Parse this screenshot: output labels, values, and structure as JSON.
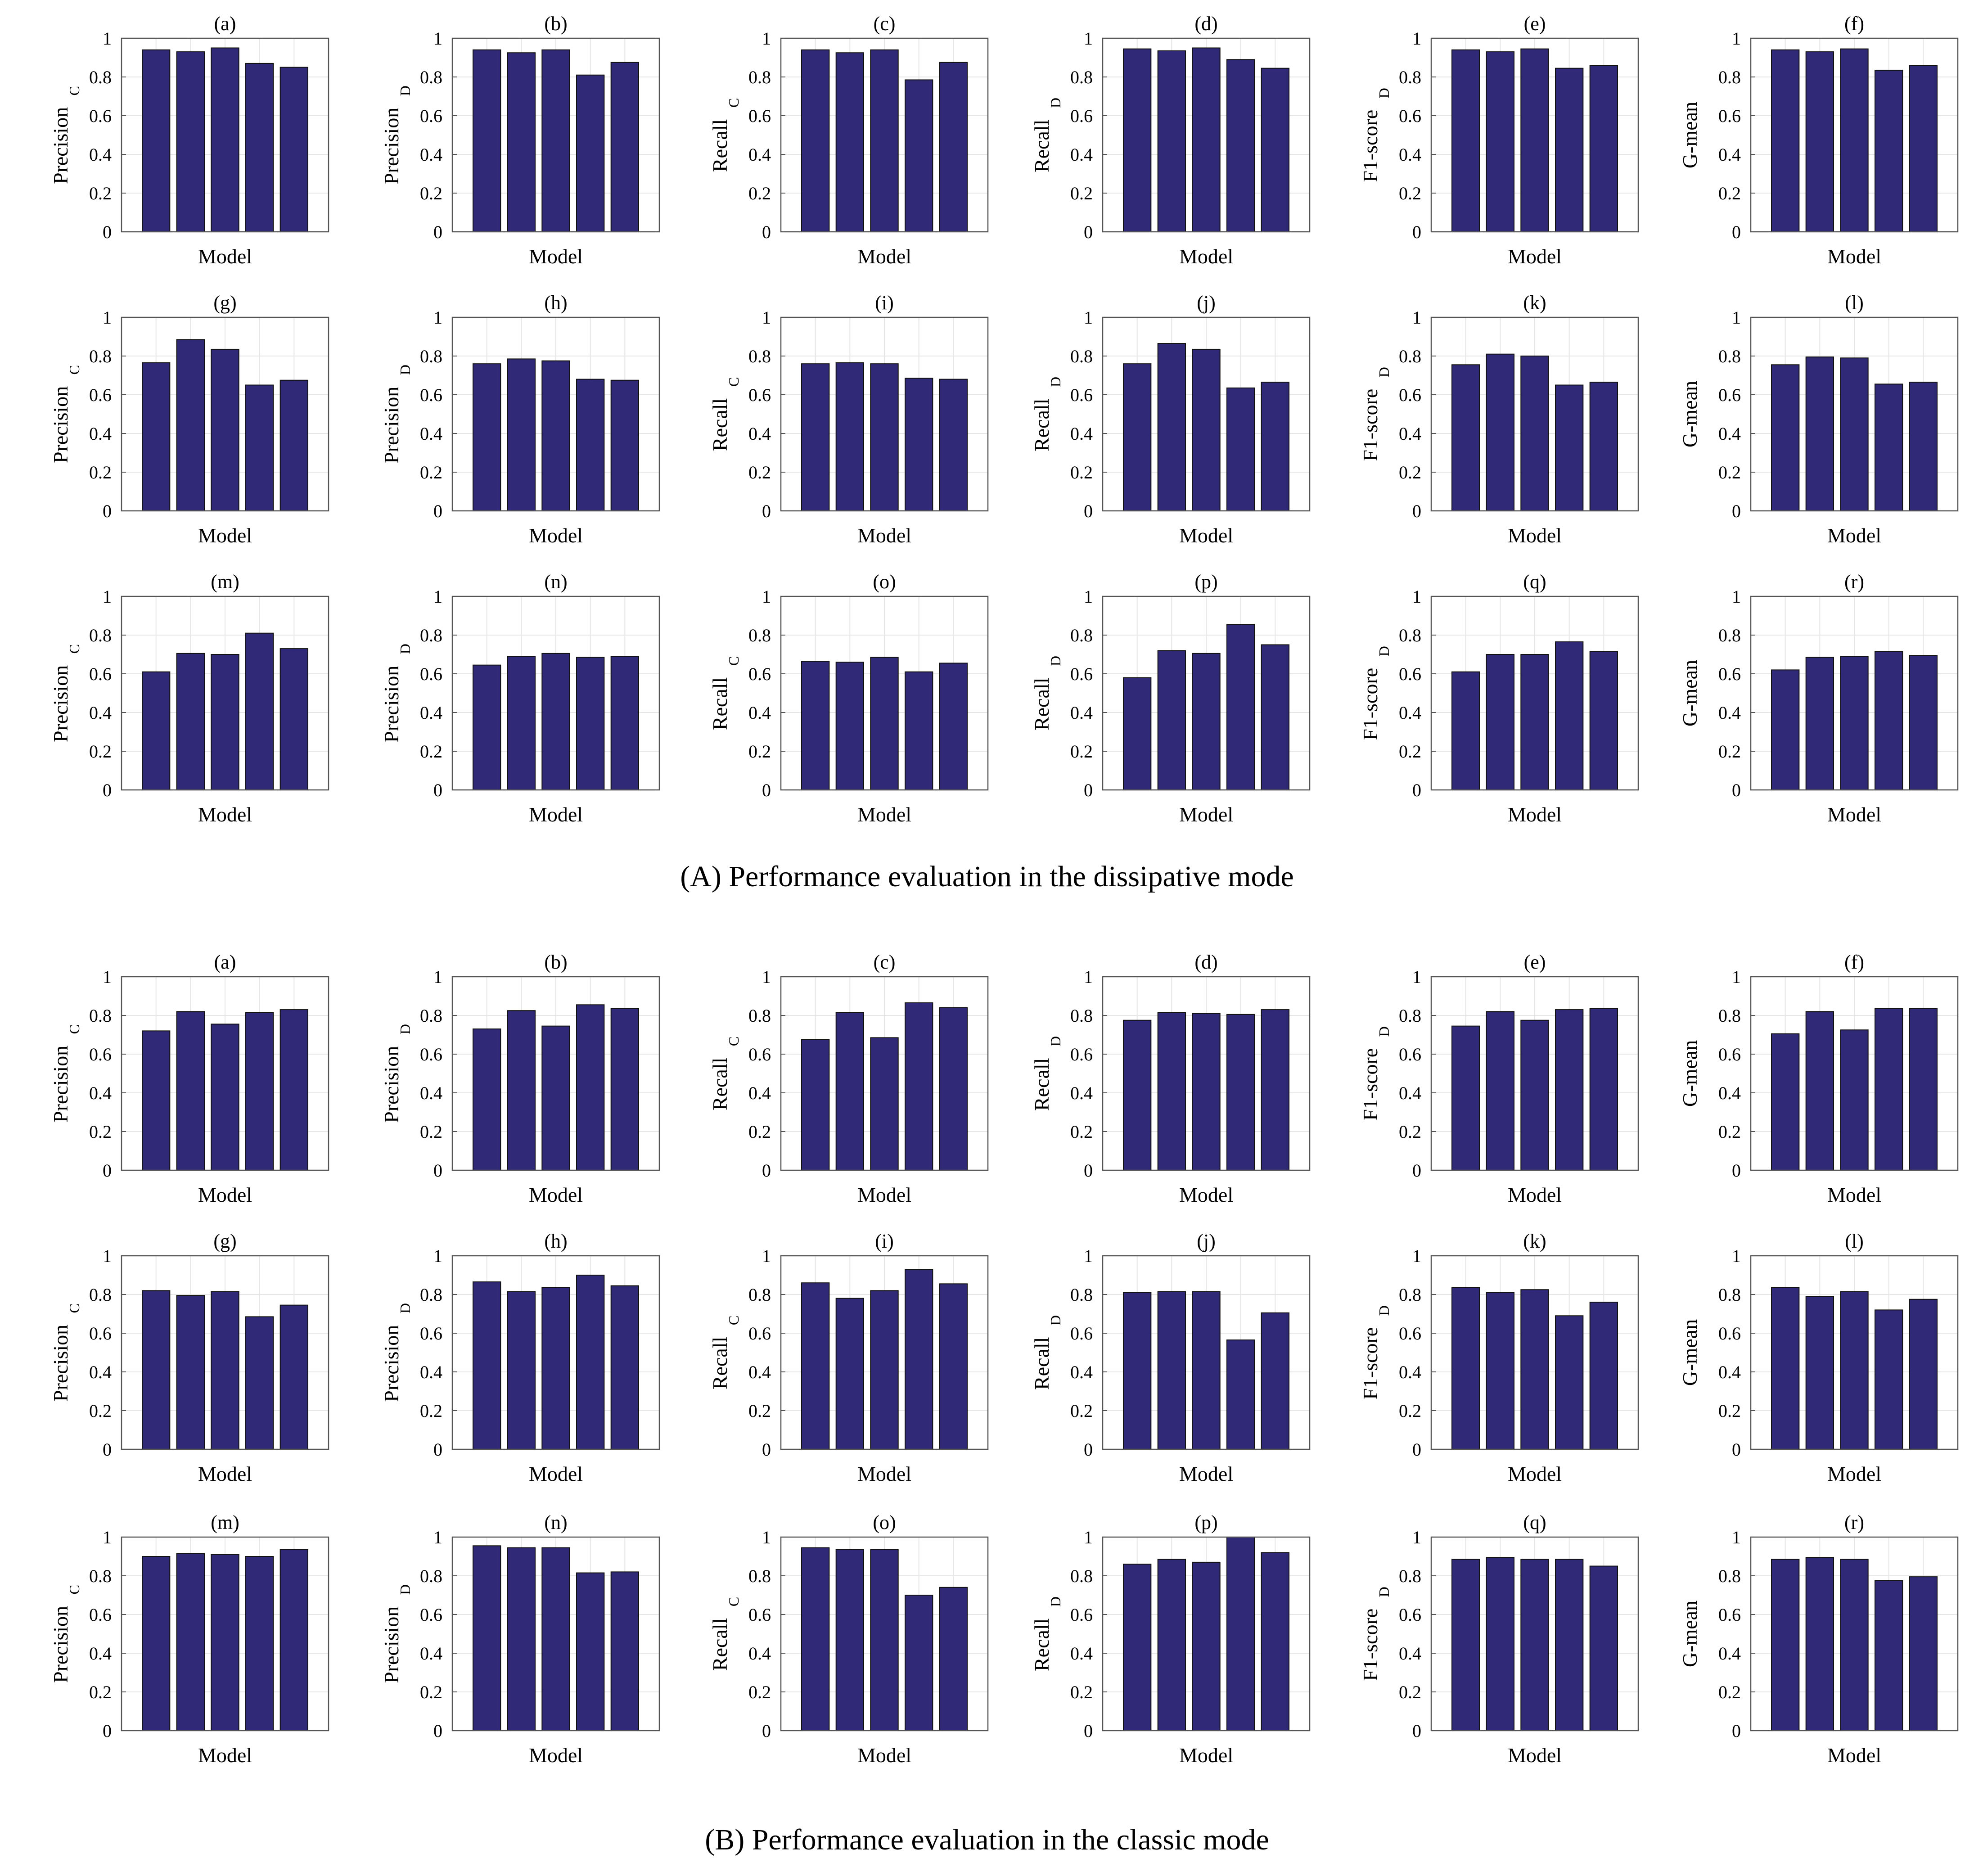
{
  "captions": {
    "section_a": "(A) Performance evaluation in  the dissipative mode",
    "section_b": "(B) Performance evaluation in the classic mode"
  },
  "colors": {
    "bar": "#302978",
    "bar_edge": "#111111",
    "grid": "#e6e6e6",
    "axis": "#555555"
  },
  "chart_data": [
    {
      "section": "A",
      "type": "bar",
      "panels": [
        {
          "title": "(a)",
          "ylabel": "Precision",
          "ysub": "C",
          "xlabel": "Model",
          "ylim": [
            0,
            1
          ],
          "yticks": [
            "0",
            "0.2",
            "0.4",
            "0.6",
            "0.8",
            "1"
          ],
          "values": [
            0.94,
            0.93,
            0.95,
            0.87,
            0.85
          ]
        },
        {
          "title": "(b)",
          "ylabel": "Precision",
          "ysub": "D",
          "xlabel": "Model",
          "ylim": [
            0,
            1
          ],
          "yticks": [
            "0",
            "0.2",
            "0.4",
            "0.6",
            "0.8",
            "1"
          ],
          "values": [
            0.94,
            0.925,
            0.94,
            0.81,
            0.875
          ]
        },
        {
          "title": "(c)",
          "ylabel": "Recall",
          "ysub": "C",
          "xlabel": "Model",
          "ylim": [
            0,
            1
          ],
          "yticks": [
            "0",
            "0.2",
            "0.4",
            "0.6",
            "0.8",
            "1"
          ],
          "values": [
            0.94,
            0.925,
            0.94,
            0.785,
            0.875
          ]
        },
        {
          "title": "(d)",
          "ylabel": "Recall",
          "ysub": "D",
          "xlabel": "Model",
          "ylim": [
            0,
            1
          ],
          "yticks": [
            "0",
            "0.2",
            "0.4",
            "0.6",
            "0.8",
            "1"
          ],
          "values": [
            0.945,
            0.935,
            0.95,
            0.89,
            0.845
          ]
        },
        {
          "title": "(e)",
          "ylabel": "F1-score",
          "ysub": "D",
          "xlabel": "Model",
          "ylim": [
            0,
            1
          ],
          "yticks": [
            "0",
            "0.2",
            "0.4",
            "0.6",
            "0.8",
            "1"
          ],
          "values": [
            0.94,
            0.93,
            0.945,
            0.845,
            0.86
          ]
        },
        {
          "title": "(f)",
          "ylabel": "G-mean",
          "ysub": "",
          "xlabel": "Model",
          "ylim": [
            0,
            1
          ],
          "yticks": [
            "0",
            "0.2",
            "0.4",
            "0.6",
            "0.8",
            "1"
          ],
          "values": [
            0.94,
            0.93,
            0.945,
            0.835,
            0.86
          ]
        },
        {
          "title": "(g)",
          "ylabel": "Precision",
          "ysub": "C",
          "xlabel": "Model",
          "ylim": [
            0,
            1
          ],
          "yticks": [
            "0",
            "0.2",
            "0.4",
            "0.6",
            "0.8",
            "1"
          ],
          "values": [
            0.765,
            0.885,
            0.835,
            0.65,
            0.675
          ]
        },
        {
          "title": "(h)",
          "ylabel": "Precision",
          "ysub": "D",
          "xlabel": "Model",
          "ylim": [
            0,
            1
          ],
          "yticks": [
            "0",
            "0.2",
            "0.4",
            "0.6",
            "0.8",
            "1"
          ],
          "values": [
            0.76,
            0.785,
            0.775,
            0.68,
            0.675
          ]
        },
        {
          "title": "(i)",
          "ylabel": "Recall",
          "ysub": "C",
          "xlabel": "Model",
          "ylim": [
            0,
            1
          ],
          "yticks": [
            "0",
            "0.2",
            "0.4",
            "0.6",
            "0.8",
            "1"
          ],
          "values": [
            0.76,
            0.765,
            0.76,
            0.685,
            0.68
          ]
        },
        {
          "title": "(j)",
          "ylabel": "Recall",
          "ysub": "D",
          "xlabel": "Model",
          "ylim": [
            0,
            1
          ],
          "yticks": [
            "0",
            "0.2",
            "0.4",
            "0.6",
            "0.8",
            "1"
          ],
          "values": [
            0.76,
            0.865,
            0.835,
            0.635,
            0.665
          ]
        },
        {
          "title": "(k)",
          "ylabel": "F1-score",
          "ysub": "D",
          "xlabel": "Model",
          "ylim": [
            0,
            1
          ],
          "yticks": [
            "0",
            "0.2",
            "0.4",
            "0.6",
            "0.8",
            "1"
          ],
          "values": [
            0.755,
            0.81,
            0.8,
            0.65,
            0.665
          ]
        },
        {
          "title": "(l)",
          "ylabel": "G-mean",
          "ysub": "",
          "xlabel": "Model",
          "ylim": [
            0,
            1
          ],
          "yticks": [
            "0",
            "0.2",
            "0.4",
            "0.6",
            "0.8",
            "1"
          ],
          "values": [
            0.755,
            0.795,
            0.79,
            0.655,
            0.665
          ]
        },
        {
          "title": "(m)",
          "ylabel": "Precision",
          "ysub": "C",
          "xlabel": "Model",
          "ylim": [
            0,
            1
          ],
          "yticks": [
            "0",
            "0.2",
            "0.4",
            "0.6",
            "0.8",
            "1"
          ],
          "values": [
            0.61,
            0.705,
            0.7,
            0.81,
            0.73
          ]
        },
        {
          "title": "(n)",
          "ylabel": "Precision",
          "ysub": "D",
          "xlabel": "Model",
          "ylim": [
            0,
            1
          ],
          "yticks": [
            "0",
            "0.2",
            "0.4",
            "0.6",
            "0.8",
            "1"
          ],
          "values": [
            0.645,
            0.69,
            0.705,
            0.685,
            0.69
          ]
        },
        {
          "title": "(o)",
          "ylabel": "Recall",
          "ysub": "C",
          "xlabel": "Model",
          "ylim": [
            0,
            1
          ],
          "yticks": [
            "0",
            "0.2",
            "0.4",
            "0.6",
            "0.8",
            "1"
          ],
          "values": [
            0.665,
            0.66,
            0.685,
            0.61,
            0.655
          ]
        },
        {
          "title": "(p)",
          "ylabel": "Recall",
          "ysub": "D",
          "xlabel": "Model",
          "ylim": [
            0,
            1
          ],
          "yticks": [
            "0",
            "0.2",
            "0.4",
            "0.6",
            "0.8",
            "1"
          ],
          "values": [
            0.58,
            0.72,
            0.705,
            0.855,
            0.75
          ]
        },
        {
          "title": "(q)",
          "ylabel": "F1-score",
          "ysub": "D",
          "xlabel": "Model",
          "ylim": [
            0,
            1
          ],
          "yticks": [
            "0",
            "0.2",
            "0.4",
            "0.6",
            "0.8",
            "1"
          ],
          "values": [
            0.61,
            0.7,
            0.7,
            0.765,
            0.715
          ]
        },
        {
          "title": "(r)",
          "ylabel": "G-mean",
          "ysub": "",
          "xlabel": "Model",
          "ylim": [
            0,
            1
          ],
          "yticks": [
            "0",
            "0.2",
            "0.4",
            "0.6",
            "0.8",
            "1"
          ],
          "values": [
            0.62,
            0.685,
            0.69,
            0.715,
            0.695
          ]
        }
      ]
    },
    {
      "section": "B",
      "type": "bar",
      "panels": [
        {
          "title": "(a)",
          "ylabel": "Precision",
          "ysub": "C",
          "xlabel": "Model",
          "ylim": [
            0,
            1
          ],
          "yticks": [
            "0",
            "0.2",
            "0.4",
            "0.6",
            "0.8",
            "1"
          ],
          "values": [
            0.72,
            0.82,
            0.755,
            0.815,
            0.83
          ]
        },
        {
          "title": "(b)",
          "ylabel": "Precision",
          "ysub": "D",
          "xlabel": "Model",
          "ylim": [
            0,
            1
          ],
          "yticks": [
            "0",
            "0.2",
            "0.4",
            "0.6",
            "0.8",
            "1"
          ],
          "values": [
            0.73,
            0.825,
            0.745,
            0.855,
            0.835
          ]
        },
        {
          "title": "(c)",
          "ylabel": "Recall",
          "ysub": "C",
          "xlabel": "Model",
          "ylim": [
            0,
            1
          ],
          "yticks": [
            "0",
            "0.2",
            "0.4",
            "0.6",
            "0.8",
            "1"
          ],
          "values": [
            0.675,
            0.815,
            0.685,
            0.865,
            0.84
          ]
        },
        {
          "title": "(d)",
          "ylabel": "Recall",
          "ysub": "D",
          "xlabel": "Model",
          "ylim": [
            0,
            1
          ],
          "yticks": [
            "0",
            "0.2",
            "0.4",
            "0.6",
            "0.8",
            "1"
          ],
          "values": [
            0.775,
            0.815,
            0.81,
            0.805,
            0.83
          ]
        },
        {
          "title": "(e)",
          "ylabel": "F1-score",
          "ysub": "D",
          "xlabel": "Model",
          "ylim": [
            0,
            1
          ],
          "yticks": [
            "0",
            "0.2",
            "0.4",
            "0.6",
            "0.8",
            "1"
          ],
          "values": [
            0.745,
            0.82,
            0.775,
            0.83,
            0.835
          ]
        },
        {
          "title": "(f)",
          "ylabel": "G-mean",
          "ysub": "",
          "xlabel": "Model",
          "ylim": [
            0,
            1
          ],
          "yticks": [
            "0",
            "0.2",
            "0.4",
            "0.6",
            "0.8",
            "1"
          ],
          "values": [
            0.705,
            0.82,
            0.725,
            0.835,
            0.835
          ]
        },
        {
          "title": "(g)",
          "ylabel": "Precision",
          "ysub": "C",
          "xlabel": "Model",
          "ylim": [
            0,
            1
          ],
          "yticks": [
            "0",
            "0.2",
            "0.4",
            "0.6",
            "0.8",
            "1"
          ],
          "values": [
            0.82,
            0.795,
            0.815,
            0.685,
            0.745
          ]
        },
        {
          "title": "(h)",
          "ylabel": "Precision",
          "ysub": "D",
          "xlabel": "Model",
          "ylim": [
            0,
            1
          ],
          "yticks": [
            "0",
            "0.2",
            "0.4",
            "0.6",
            "0.8",
            "1"
          ],
          "values": [
            0.865,
            0.815,
            0.835,
            0.9,
            0.845
          ]
        },
        {
          "title": "(i)",
          "ylabel": "Recall",
          "ysub": "C",
          "xlabel": "Model",
          "ylim": [
            0,
            1
          ],
          "yticks": [
            "0",
            "0.2",
            "0.4",
            "0.6",
            "0.8",
            "1"
          ],
          "values": [
            0.86,
            0.78,
            0.82,
            0.93,
            0.855
          ]
        },
        {
          "title": "(j)",
          "ylabel": "Recall",
          "ysub": "D",
          "xlabel": "Model",
          "ylim": [
            0,
            1
          ],
          "yticks": [
            "0",
            "0.2",
            "0.4",
            "0.6",
            "0.8",
            "1"
          ],
          "values": [
            0.81,
            0.815,
            0.815,
            0.565,
            0.705
          ]
        },
        {
          "title": "(k)",
          "ylabel": "F1-score",
          "ysub": "D",
          "xlabel": "Model",
          "ylim": [
            0,
            1
          ],
          "yticks": [
            "0",
            "0.2",
            "0.4",
            "0.6",
            "0.8",
            "1"
          ],
          "values": [
            0.835,
            0.81,
            0.825,
            0.69,
            0.76
          ]
        },
        {
          "title": "(l)",
          "ylabel": "G-mean",
          "ysub": "",
          "xlabel": "Model",
          "ylim": [
            0,
            1
          ],
          "yticks": [
            "0",
            "0.2",
            "0.4",
            "0.6",
            "0.8",
            "1"
          ],
          "values": [
            0.835,
            0.79,
            0.815,
            0.72,
            0.775
          ]
        },
        {
          "title": "(m)",
          "ylabel": "Precision",
          "ysub": "C",
          "xlabel": "Model",
          "ylim": [
            0,
            1
          ],
          "yticks": [
            "0",
            "0.2",
            "0.4",
            "0.6",
            "0.8",
            "1"
          ],
          "values": [
            0.9,
            0.915,
            0.91,
            0.9,
            0.935
          ]
        },
        {
          "title": "(n)",
          "ylabel": "Precision",
          "ysub": "D",
          "xlabel": "Model",
          "ylim": [
            0,
            1
          ],
          "yticks": [
            "0",
            "0.2",
            "0.4",
            "0.6",
            "0.8",
            "1"
          ],
          "values": [
            0.955,
            0.945,
            0.945,
            0.815,
            0.82
          ]
        },
        {
          "title": "(o)",
          "ylabel": "Recall",
          "ysub": "C",
          "xlabel": "Model",
          "ylim": [
            0,
            1
          ],
          "yticks": [
            "0",
            "0.2",
            "0.4",
            "0.6",
            "0.8",
            "1"
          ],
          "values": [
            0.945,
            0.935,
            0.935,
            0.7,
            0.74
          ]
        },
        {
          "title": "(p)",
          "ylabel": "Recall",
          "ysub": "D",
          "xlabel": "Model",
          "ylim": [
            0,
            1
          ],
          "yticks": [
            "0",
            "0.2",
            "0.4",
            "0.6",
            "0.8",
            "1"
          ],
          "values": [
            0.86,
            0.885,
            0.87,
            1.0,
            0.92
          ]
        },
        {
          "title": "(q)",
          "ylabel": "F1-score",
          "ysub": "D",
          "xlabel": "Model",
          "ylim": [
            0,
            1
          ],
          "yticks": [
            "0",
            "0.2",
            "0.4",
            "0.6",
            "0.8",
            "1"
          ],
          "values": [
            0.885,
            0.895,
            0.885,
            0.885,
            0.85
          ]
        },
        {
          "title": "(r)",
          "ylabel": "G-mean",
          "ysub": "",
          "xlabel": "Model",
          "ylim": [
            0,
            1
          ],
          "yticks": [
            "0",
            "0.2",
            "0.4",
            "0.6",
            "0.8",
            "1"
          ],
          "values": [
            0.885,
            0.895,
            0.885,
            0.775,
            0.795
          ]
        }
      ]
    }
  ]
}
